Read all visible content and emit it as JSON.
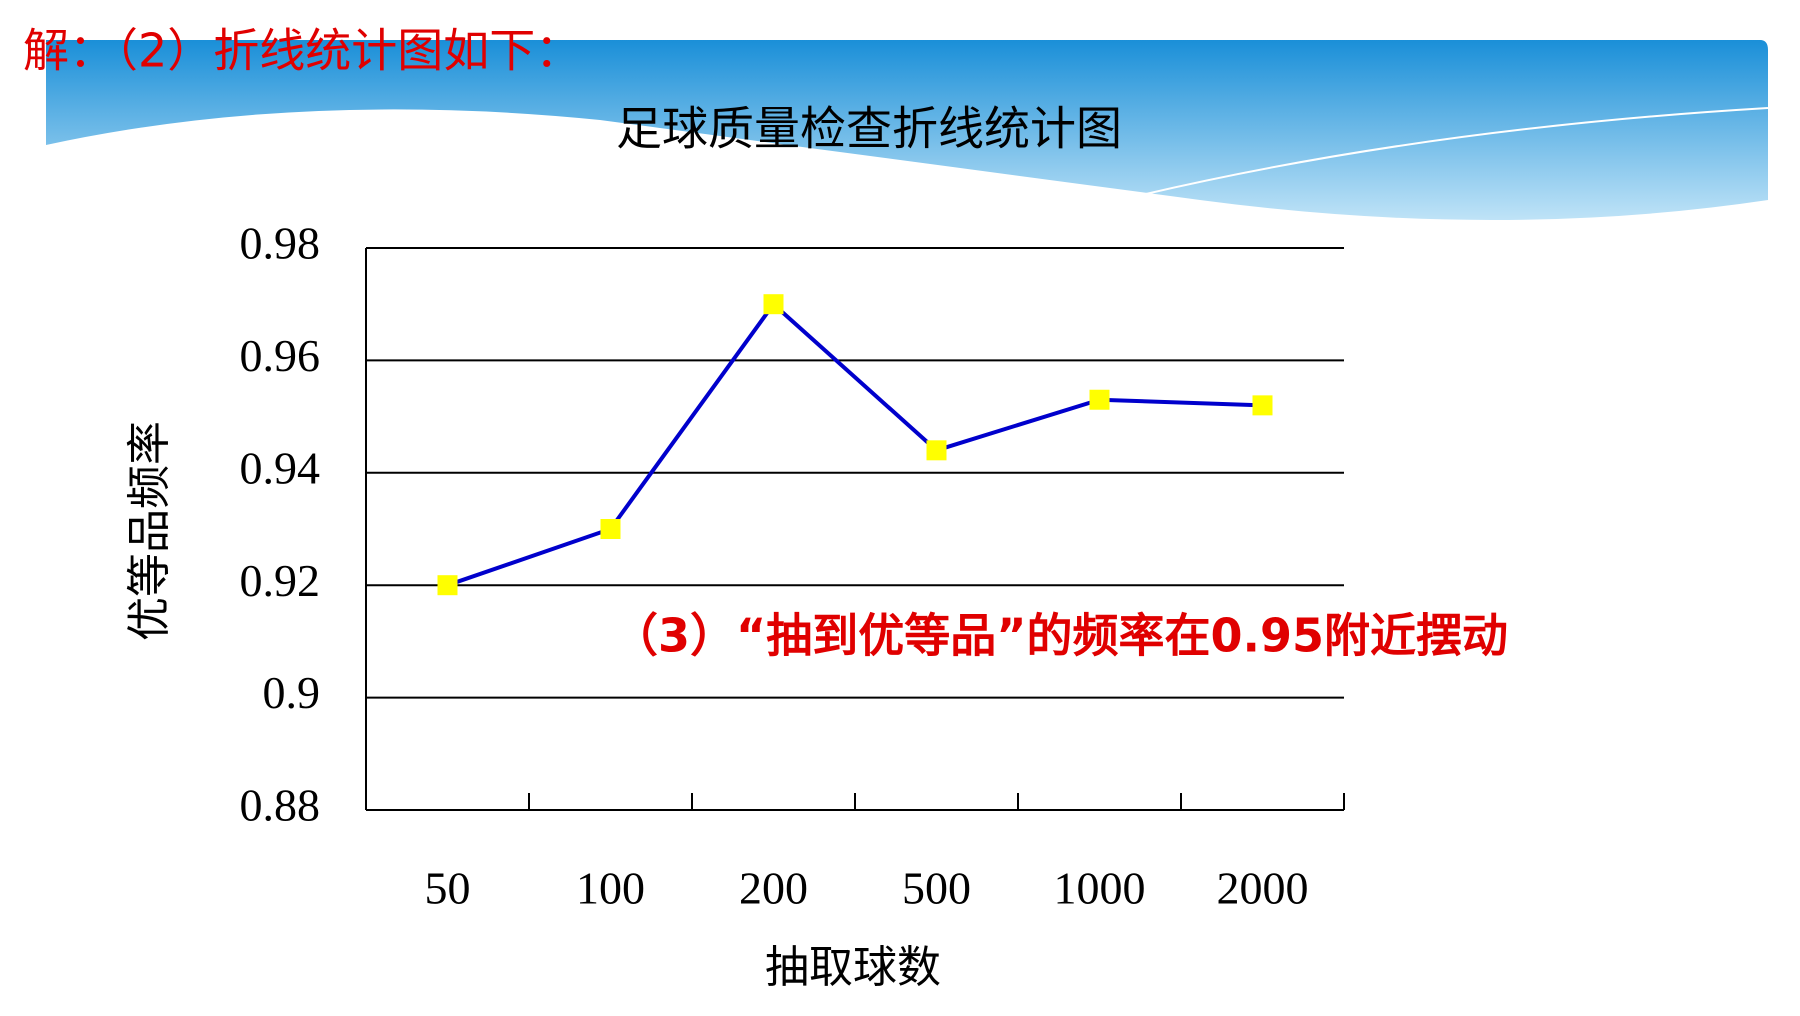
{
  "chart_data": {
    "type": "line",
    "title": "足球质量检查折线统计图",
    "x_label": "抽取球数",
    "y_label": "优等品频率",
    "categories": [
      "50",
      "100",
      "200",
      "500",
      "1000",
      "2000"
    ],
    "series": [
      {
        "name": "优等品频率",
        "color": "#0000cc",
        "marker_color": "#ffff00",
        "values": [
          0.92,
          0.93,
          0.97,
          0.944,
          0.953,
          0.952
        ]
      }
    ],
    "ylim": [
      0.88,
      0.98
    ],
    "yticks": [
      0.88,
      0.9,
      0.92,
      0.94,
      0.96,
      0.98
    ],
    "grid": true,
    "annotations": [
      "解：（2）折线统计图如下：",
      "（3）“抽到优等品”的频率在0.95附近摆动"
    ]
  }
}
